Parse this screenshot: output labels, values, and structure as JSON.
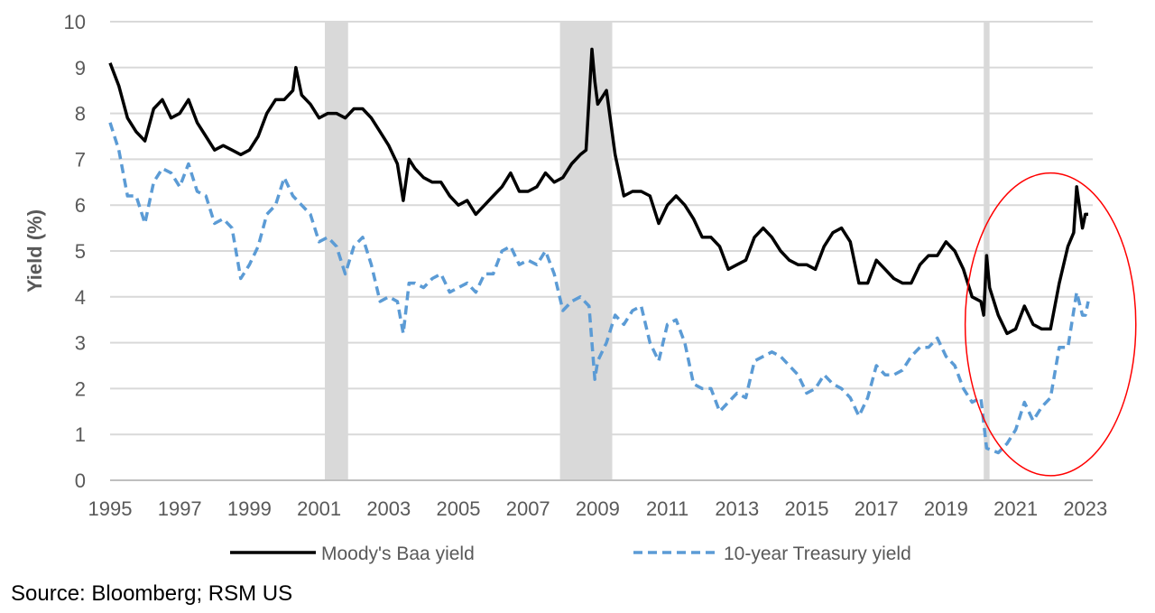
{
  "chart_data": {
    "type": "line",
    "title": "",
    "xlabel": "",
    "ylabel": "Yield (%)",
    "ylim": [
      0,
      10
    ],
    "xlim": [
      "1995-01",
      "2023-03"
    ],
    "yticks": [
      "0",
      "1",
      "2",
      "3",
      "4",
      "5",
      "6",
      "7",
      "8",
      "9",
      "10"
    ],
    "xticks": [
      "1995",
      "1997",
      "1999",
      "2001",
      "2003",
      "2005",
      "2007",
      "2009",
      "2011",
      "2013",
      "2015",
      "2017",
      "2019",
      "2021",
      "2023"
    ],
    "grid": true,
    "legend_position": "bottom",
    "shaded_periods": [
      {
        "start": "2001-03",
        "end": "2001-11",
        "color": "#d9d9d9"
      },
      {
        "start": "2007-12",
        "end": "2009-06",
        "color": "#d9d9d9"
      },
      {
        "start": "2020-02",
        "end": "2020-04",
        "color": "#d9d9d9"
      }
    ],
    "annotations": [
      {
        "type": "ellipse",
        "color": "#ff0000",
        "center": [
          "2022-01",
          3.4
        ],
        "radius_years": 2.45,
        "radius_y": 3.3
      }
    ],
    "series": [
      {
        "name": "Moody's Baa yield",
        "color": "#000000",
        "style": "solid",
        "points": [
          [
            "1995-01",
            9.1
          ],
          [
            "1995-04",
            8.6
          ],
          [
            "1995-07",
            7.9
          ],
          [
            "1995-10",
            7.6
          ],
          [
            "1996-01",
            7.4
          ],
          [
            "1996-04",
            8.1
          ],
          [
            "1996-07",
            8.3
          ],
          [
            "1996-10",
            7.9
          ],
          [
            "1997-01",
            8.0
          ],
          [
            "1997-04",
            8.3
          ],
          [
            "1997-07",
            7.8
          ],
          [
            "1997-10",
            7.5
          ],
          [
            "1998-01",
            7.2
          ],
          [
            "1998-04",
            7.3
          ],
          [
            "1998-07",
            7.2
          ],
          [
            "1998-10",
            7.1
          ],
          [
            "1999-01",
            7.2
          ],
          [
            "1999-04",
            7.5
          ],
          [
            "1999-07",
            8.0
          ],
          [
            "1999-10",
            8.3
          ],
          [
            "2000-01",
            8.3
          ],
          [
            "2000-04",
            8.5
          ],
          [
            "2000-05",
            9.0
          ],
          [
            "2000-07",
            8.4
          ],
          [
            "2000-10",
            8.2
          ],
          [
            "2001-01",
            7.9
          ],
          [
            "2001-04",
            8.0
          ],
          [
            "2001-07",
            8.0
          ],
          [
            "2001-10",
            7.9
          ],
          [
            "2002-01",
            8.1
          ],
          [
            "2002-04",
            8.1
          ],
          [
            "2002-07",
            7.9
          ],
          [
            "2002-10",
            7.6
          ],
          [
            "2003-01",
            7.3
          ],
          [
            "2003-04",
            6.9
          ],
          [
            "2003-06",
            6.1
          ],
          [
            "2003-08",
            7.0
          ],
          [
            "2003-10",
            6.8
          ],
          [
            "2004-01",
            6.6
          ],
          [
            "2004-04",
            6.5
          ],
          [
            "2004-07",
            6.5
          ],
          [
            "2004-10",
            6.2
          ],
          [
            "2005-01",
            6.0
          ],
          [
            "2005-04",
            6.1
          ],
          [
            "2005-07",
            5.8
          ],
          [
            "2005-10",
            6.0
          ],
          [
            "2006-01",
            6.2
          ],
          [
            "2006-04",
            6.4
          ],
          [
            "2006-07",
            6.7
          ],
          [
            "2006-10",
            6.3
          ],
          [
            "2007-01",
            6.3
          ],
          [
            "2007-04",
            6.4
          ],
          [
            "2007-07",
            6.7
          ],
          [
            "2007-10",
            6.5
          ],
          [
            "2008-01",
            6.6
          ],
          [
            "2008-04",
            6.9
          ],
          [
            "2008-07",
            7.1
          ],
          [
            "2008-09",
            7.2
          ],
          [
            "2008-11",
            9.4
          ],
          [
            "2008-12",
            8.7
          ],
          [
            "2009-01",
            8.2
          ],
          [
            "2009-04",
            8.5
          ],
          [
            "2009-07",
            7.1
          ],
          [
            "2009-10",
            6.2
          ],
          [
            "2010-01",
            6.3
          ],
          [
            "2010-04",
            6.3
          ],
          [
            "2010-07",
            6.2
          ],
          [
            "2010-10",
            5.6
          ],
          [
            "2011-01",
            6.0
          ],
          [
            "2011-04",
            6.2
          ],
          [
            "2011-07",
            6.0
          ],
          [
            "2011-10",
            5.7
          ],
          [
            "2012-01",
            5.3
          ],
          [
            "2012-04",
            5.3
          ],
          [
            "2012-07",
            5.1
          ],
          [
            "2012-10",
            4.6
          ],
          [
            "2013-01",
            4.7
          ],
          [
            "2013-04",
            4.8
          ],
          [
            "2013-07",
            5.3
          ],
          [
            "2013-10",
            5.5
          ],
          [
            "2014-01",
            5.3
          ],
          [
            "2014-04",
            5.0
          ],
          [
            "2014-07",
            4.8
          ],
          [
            "2014-10",
            4.7
          ],
          [
            "2015-01",
            4.7
          ],
          [
            "2015-04",
            4.6
          ],
          [
            "2015-07",
            5.1
          ],
          [
            "2015-10",
            5.4
          ],
          [
            "2016-01",
            5.5
          ],
          [
            "2016-04",
            5.2
          ],
          [
            "2016-07",
            4.3
          ],
          [
            "2016-10",
            4.3
          ],
          [
            "2017-01",
            4.8
          ],
          [
            "2017-04",
            4.6
          ],
          [
            "2017-07",
            4.4
          ],
          [
            "2017-10",
            4.3
          ],
          [
            "2018-01",
            4.3
          ],
          [
            "2018-04",
            4.7
          ],
          [
            "2018-07",
            4.9
          ],
          [
            "2018-10",
            4.9
          ],
          [
            "2019-01",
            5.2
          ],
          [
            "2019-04",
            5.0
          ],
          [
            "2019-07",
            4.6
          ],
          [
            "2019-10",
            4.0
          ],
          [
            "2020-01",
            3.9
          ],
          [
            "2020-02",
            3.6
          ],
          [
            "2020-03",
            4.9
          ],
          [
            "2020-04",
            4.2
          ],
          [
            "2020-07",
            3.6
          ],
          [
            "2020-10",
            3.2
          ],
          [
            "2021-01",
            3.3
          ],
          [
            "2021-04",
            3.8
          ],
          [
            "2021-07",
            3.4
          ],
          [
            "2021-10",
            3.3
          ],
          [
            "2022-01",
            3.3
          ],
          [
            "2022-04",
            4.3
          ],
          [
            "2022-07",
            5.1
          ],
          [
            "2022-09",
            5.4
          ],
          [
            "2022-10",
            6.4
          ],
          [
            "2022-12",
            5.5
          ],
          [
            "2023-01",
            5.8
          ],
          [
            "2023-02",
            5.8
          ]
        ]
      },
      {
        "name": "10-year Treasury yield",
        "color": "#5b9bd5",
        "style": "dashed",
        "points": [
          [
            "1995-01",
            7.8
          ],
          [
            "1995-04",
            7.2
          ],
          [
            "1995-07",
            6.2
          ],
          [
            "1995-10",
            6.2
          ],
          [
            "1996-01",
            5.6
          ],
          [
            "1996-04",
            6.5
          ],
          [
            "1996-07",
            6.8
          ],
          [
            "1996-10",
            6.7
          ],
          [
            "1997-01",
            6.4
          ],
          [
            "1997-04",
            6.9
          ],
          [
            "1997-07",
            6.3
          ],
          [
            "1997-10",
            6.2
          ],
          [
            "1998-01",
            5.6
          ],
          [
            "1998-04",
            5.7
          ],
          [
            "1998-07",
            5.5
          ],
          [
            "1998-10",
            4.4
          ],
          [
            "1999-01",
            4.7
          ],
          [
            "1999-04",
            5.1
          ],
          [
            "1999-07",
            5.8
          ],
          [
            "1999-10",
            6.0
          ],
          [
            "2000-01",
            6.6
          ],
          [
            "2000-04",
            6.2
          ],
          [
            "2000-07",
            6.0
          ],
          [
            "2000-10",
            5.8
          ],
          [
            "2001-01",
            5.2
          ],
          [
            "2001-04",
            5.3
          ],
          [
            "2001-07",
            5.1
          ],
          [
            "2001-10",
            4.5
          ],
          [
            "2002-01",
            5.1
          ],
          [
            "2002-04",
            5.3
          ],
          [
            "2002-07",
            4.7
          ],
          [
            "2002-10",
            3.9
          ],
          [
            "2003-01",
            4.0
          ],
          [
            "2003-04",
            3.9
          ],
          [
            "2003-06",
            3.2
          ],
          [
            "2003-08",
            4.3
          ],
          [
            "2003-10",
            4.3
          ],
          [
            "2004-01",
            4.2
          ],
          [
            "2004-04",
            4.4
          ],
          [
            "2004-07",
            4.5
          ],
          [
            "2004-10",
            4.1
          ],
          [
            "2005-01",
            4.2
          ],
          [
            "2005-04",
            4.3
          ],
          [
            "2005-07",
            4.1
          ],
          [
            "2005-10",
            4.5
          ],
          [
            "2006-01",
            4.5
          ],
          [
            "2006-04",
            5.0
          ],
          [
            "2006-07",
            5.1
          ],
          [
            "2006-10",
            4.7
          ],
          [
            "2007-01",
            4.8
          ],
          [
            "2007-04",
            4.7
          ],
          [
            "2007-07",
            5.0
          ],
          [
            "2007-10",
            4.5
          ],
          [
            "2008-01",
            3.7
          ],
          [
            "2008-04",
            3.9
          ],
          [
            "2008-07",
            4.0
          ],
          [
            "2008-10",
            3.8
          ],
          [
            "2008-12",
            2.2
          ],
          [
            "2009-01",
            2.6
          ],
          [
            "2009-04",
            3.0
          ],
          [
            "2009-07",
            3.6
          ],
          [
            "2009-10",
            3.4
          ],
          [
            "2010-01",
            3.7
          ],
          [
            "2010-04",
            3.8
          ],
          [
            "2010-07",
            3.0
          ],
          [
            "2010-10",
            2.6
          ],
          [
            "2011-01",
            3.4
          ],
          [
            "2011-04",
            3.5
          ],
          [
            "2011-07",
            3.0
          ],
          [
            "2011-10",
            2.1
          ],
          [
            "2012-01",
            2.0
          ],
          [
            "2012-04",
            2.0
          ],
          [
            "2012-07",
            1.5
          ],
          [
            "2012-10",
            1.7
          ],
          [
            "2013-01",
            1.9
          ],
          [
            "2013-04",
            1.8
          ],
          [
            "2013-07",
            2.6
          ],
          [
            "2013-10",
            2.7
          ],
          [
            "2014-01",
            2.8
          ],
          [
            "2014-04",
            2.7
          ],
          [
            "2014-07",
            2.5
          ],
          [
            "2014-10",
            2.3
          ],
          [
            "2015-01",
            1.9
          ],
          [
            "2015-04",
            2.0
          ],
          [
            "2015-07",
            2.3
          ],
          [
            "2015-10",
            2.1
          ],
          [
            "2016-01",
            2.0
          ],
          [
            "2016-04",
            1.8
          ],
          [
            "2016-07",
            1.4
          ],
          [
            "2016-10",
            1.8
          ],
          [
            "2017-01",
            2.5
          ],
          [
            "2017-04",
            2.3
          ],
          [
            "2017-07",
            2.3
          ],
          [
            "2017-10",
            2.4
          ],
          [
            "2018-01",
            2.7
          ],
          [
            "2018-04",
            2.9
          ],
          [
            "2018-07",
            2.9
          ],
          [
            "2018-10",
            3.1
          ],
          [
            "2019-01",
            2.7
          ],
          [
            "2019-04",
            2.5
          ],
          [
            "2019-07",
            2.0
          ],
          [
            "2019-10",
            1.7
          ],
          [
            "2020-01",
            1.8
          ],
          [
            "2020-03",
            0.7
          ],
          [
            "2020-07",
            0.6
          ],
          [
            "2020-10",
            0.8
          ],
          [
            "2021-01",
            1.1
          ],
          [
            "2021-04",
            1.7
          ],
          [
            "2021-07",
            1.3
          ],
          [
            "2021-10",
            1.6
          ],
          [
            "2022-01",
            1.8
          ],
          [
            "2022-04",
            2.9
          ],
          [
            "2022-07",
            2.9
          ],
          [
            "2022-10",
            4.1
          ],
          [
            "2022-12",
            3.6
          ],
          [
            "2023-01",
            3.6
          ],
          [
            "2023-02",
            3.9
          ]
        ]
      }
    ]
  },
  "source": "Source: Bloomberg; RSM US"
}
